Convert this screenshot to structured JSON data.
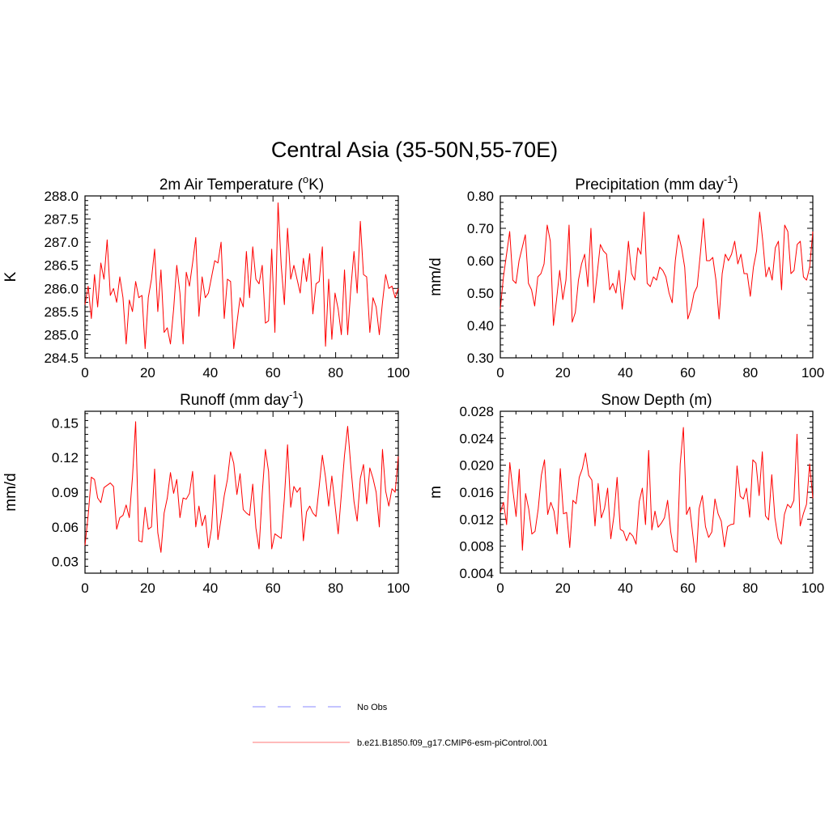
{
  "figure": {
    "title": "Central Asia (35-50N,55-70E)",
    "colors": {
      "model": "#ff0000",
      "obs": "#a0a0ff",
      "axis": "#000000"
    }
  },
  "legend": {
    "items": [
      {
        "label": "No Obs",
        "style": "dashed",
        "color": "#a0a0ff"
      },
      {
        "label": "b.e21.B1850.f09_g17.CMIP6-esm-piControl.001",
        "style": "solid",
        "color": "#ff0000"
      }
    ]
  },
  "chart_data": [
    {
      "type": "line",
      "title": "2m Air Temperature (",
      "title_sup": "o",
      "title_tail": "K)",
      "ylabel": "K",
      "xlim": [
        0,
        100
      ],
      "ylim": [
        284.5,
        288.0
      ],
      "xticks": [
        0,
        20,
        40,
        60,
        80,
        100
      ],
      "yticks": [
        284.5,
        285.0,
        285.5,
        286.0,
        286.5,
        287.0,
        287.5,
        288.0
      ],
      "ytick_labels": [
        "284.5",
        "285.0",
        "285.5",
        "286.0",
        "286.5",
        "287.0",
        "287.5",
        "288.0"
      ],
      "series": [
        {
          "color": "#ff0000",
          "values": [
            285.65,
            286.05,
            285.35,
            286.3,
            285.6,
            286.55,
            286.2,
            287.05,
            285.85,
            286.0,
            285.7,
            286.25,
            285.8,
            284.8,
            285.75,
            285.5,
            286.15,
            285.8,
            285.85,
            284.7,
            285.8,
            286.2,
            286.85,
            285.5,
            286.4,
            285.05,
            285.15,
            284.8,
            285.55,
            286.5,
            285.9,
            284.8,
            286.35,
            286.05,
            286.55,
            287.1,
            285.4,
            286.25,
            285.8,
            285.9,
            286.25,
            286.6,
            286.55,
            287.0,
            285.35,
            286.2,
            286.15,
            284.7,
            285.25,
            285.8,
            285.6,
            286.8,
            285.8,
            286.9,
            286.2,
            286.1,
            286.5,
            285.25,
            285.3,
            286.85,
            285.05,
            287.85,
            286.5,
            285.65,
            287.3,
            286.2,
            286.5,
            286.2,
            285.9,
            286.65,
            286.15,
            286.75,
            285.45,
            286.1,
            286.15,
            286.9,
            284.75,
            286.2,
            284.9,
            285.9,
            285.55,
            285.0,
            286.4,
            285.0,
            286.0,
            286.8,
            285.9,
            287.45,
            286.3,
            286.25,
            285.05,
            285.8,
            285.6,
            285.0,
            285.7,
            286.3,
            286.0,
            286.05,
            285.8,
            286.0
          ]
        }
      ]
    },
    {
      "type": "line",
      "title": "Precipitation (mm day",
      "title_sup": "-1",
      "title_tail": ")",
      "ylabel": "mm/d",
      "xlim": [
        0,
        100
      ],
      "ylim": [
        0.3,
        0.8
      ],
      "xticks": [
        0,
        20,
        40,
        60,
        80,
        100
      ],
      "yticks": [
        0.3,
        0.4,
        0.5,
        0.6,
        0.7,
        0.8
      ],
      "ytick_labels": [
        "0.30",
        "0.40",
        "0.50",
        "0.60",
        "0.70",
        "0.80"
      ],
      "series": [
        {
          "color": "#ff0000",
          "values": [
            0.45,
            0.55,
            0.62,
            0.69,
            0.54,
            0.53,
            0.6,
            0.64,
            0.68,
            0.53,
            0.51,
            0.46,
            0.55,
            0.56,
            0.59,
            0.71,
            0.66,
            0.4,
            0.48,
            0.57,
            0.48,
            0.54,
            0.71,
            0.41,
            0.44,
            0.54,
            0.59,
            0.62,
            0.52,
            0.7,
            0.47,
            0.56,
            0.65,
            0.63,
            0.62,
            0.51,
            0.53,
            0.5,
            0.57,
            0.45,
            0.54,
            0.66,
            0.56,
            0.54,
            0.64,
            0.62,
            0.75,
            0.53,
            0.52,
            0.55,
            0.54,
            0.58,
            0.57,
            0.55,
            0.5,
            0.47,
            0.6,
            0.68,
            0.64,
            0.58,
            0.42,
            0.45,
            0.5,
            0.52,
            0.62,
            0.73,
            0.6,
            0.6,
            0.61,
            0.54,
            0.42,
            0.56,
            0.62,
            0.6,
            0.62,
            0.66,
            0.59,
            0.62,
            0.56,
            0.56,
            0.49,
            0.58,
            0.63,
            0.75,
            0.66,
            0.55,
            0.58,
            0.54,
            0.64,
            0.66,
            0.51,
            0.71,
            0.69,
            0.56,
            0.57,
            0.65,
            0.66,
            0.55,
            0.54,
            0.58,
            0.69
          ]
        }
      ]
    },
    {
      "type": "line",
      "title": "Runoff (mm day",
      "title_sup": "-1",
      "title_tail": ")",
      "ylabel": "mm/d",
      "xlim": [
        0,
        100
      ],
      "ylim": [
        0.02,
        0.16
      ],
      "xticks": [
        0,
        20,
        40,
        60,
        80,
        100
      ],
      "yticks": [
        0.03,
        0.06,
        0.09,
        0.12,
        0.15
      ],
      "ytick_labels": [
        "0.03",
        "0.06",
        "0.09",
        "0.12",
        "0.15"
      ],
      "series": [
        {
          "color": "#ff0000",
          "values": [
            0.044,
            0.07,
            0.103,
            0.101,
            0.085,
            0.081,
            0.094,
            0.096,
            0.098,
            0.095,
            0.058,
            0.068,
            0.07,
            0.079,
            0.068,
            0.103,
            0.151,
            0.048,
            0.047,
            0.077,
            0.058,
            0.06,
            0.11,
            0.055,
            0.038,
            0.072,
            0.085,
            0.107,
            0.089,
            0.101,
            0.068,
            0.085,
            0.084,
            0.089,
            0.108,
            0.06,
            0.078,
            0.061,
            0.07,
            0.042,
            0.059,
            0.105,
            0.049,
            0.067,
            0.087,
            0.101,
            0.125,
            0.115,
            0.088,
            0.106,
            0.075,
            0.072,
            0.07,
            0.097,
            0.059,
            0.041,
            0.089,
            0.127,
            0.108,
            0.041,
            0.054,
            0.052,
            0.05,
            0.085,
            0.131,
            0.077,
            0.095,
            0.09,
            0.094,
            0.048,
            0.073,
            0.078,
            0.072,
            0.069,
            0.095,
            0.122,
            0.103,
            0.078,
            0.104,
            0.079,
            0.054,
            0.088,
            0.122,
            0.147,
            0.112,
            0.082,
            0.065,
            0.102,
            0.114,
            0.08,
            0.111,
            0.102,
            0.09,
            0.06,
            0.127,
            0.091,
            0.078,
            0.093,
            0.09,
            0.121
          ]
        }
      ]
    },
    {
      "type": "line",
      "title": "Snow Depth (m)",
      "title_sup": "",
      "title_tail": "",
      "ylabel": "m",
      "xlim": [
        0,
        100
      ],
      "ylim": [
        0.004,
        0.028
      ],
      "xticks": [
        0,
        20,
        40,
        60,
        80,
        100
      ],
      "yticks": [
        0.004,
        0.008,
        0.012,
        0.016,
        0.02,
        0.024,
        0.028
      ],
      "ytick_labels": [
        "0.004",
        "0.008",
        "0.012",
        "0.016",
        "0.020",
        "0.024",
        "0.028"
      ],
      "series": [
        {
          "color": "#ff0000",
          "values": [
            0.013,
            0.0145,
            0.0112,
            0.0204,
            0.0162,
            0.0124,
            0.0194,
            0.0074,
            0.0158,
            0.0135,
            0.0098,
            0.0102,
            0.0135,
            0.0185,
            0.0208,
            0.0127,
            0.0145,
            0.0132,
            0.0098,
            0.0195,
            0.0128,
            0.013,
            0.0078,
            0.0148,
            0.0143,
            0.0182,
            0.0195,
            0.0218,
            0.0185,
            0.0178,
            0.011,
            0.0173,
            0.0122,
            0.0136,
            0.0166,
            0.0091,
            0.0125,
            0.0182,
            0.0105,
            0.0102,
            0.0088,
            0.01,
            0.0095,
            0.0083,
            0.0146,
            0.0166,
            0.0112,
            0.0222,
            0.0104,
            0.0132,
            0.0108,
            0.0114,
            0.0122,
            0.0148,
            0.0101,
            0.0074,
            0.0071,
            0.0202,
            0.0256,
            0.0127,
            0.0138,
            0.0096,
            0.0056,
            0.0136,
            0.0155,
            0.0109,
            0.0093,
            0.0101,
            0.015,
            0.0128,
            0.0117,
            0.0079,
            0.0109,
            0.0112,
            0.0113,
            0.0199,
            0.0154,
            0.015,
            0.0166,
            0.0123,
            0.0208,
            0.0203,
            0.0155,
            0.022,
            0.0125,
            0.0119,
            0.0186,
            0.0122,
            0.0092,
            0.0083,
            0.0127,
            0.0142,
            0.0137,
            0.0148,
            0.0246,
            0.011,
            0.0128,
            0.0142,
            0.0202,
            0.0151
          ]
        }
      ]
    }
  ]
}
